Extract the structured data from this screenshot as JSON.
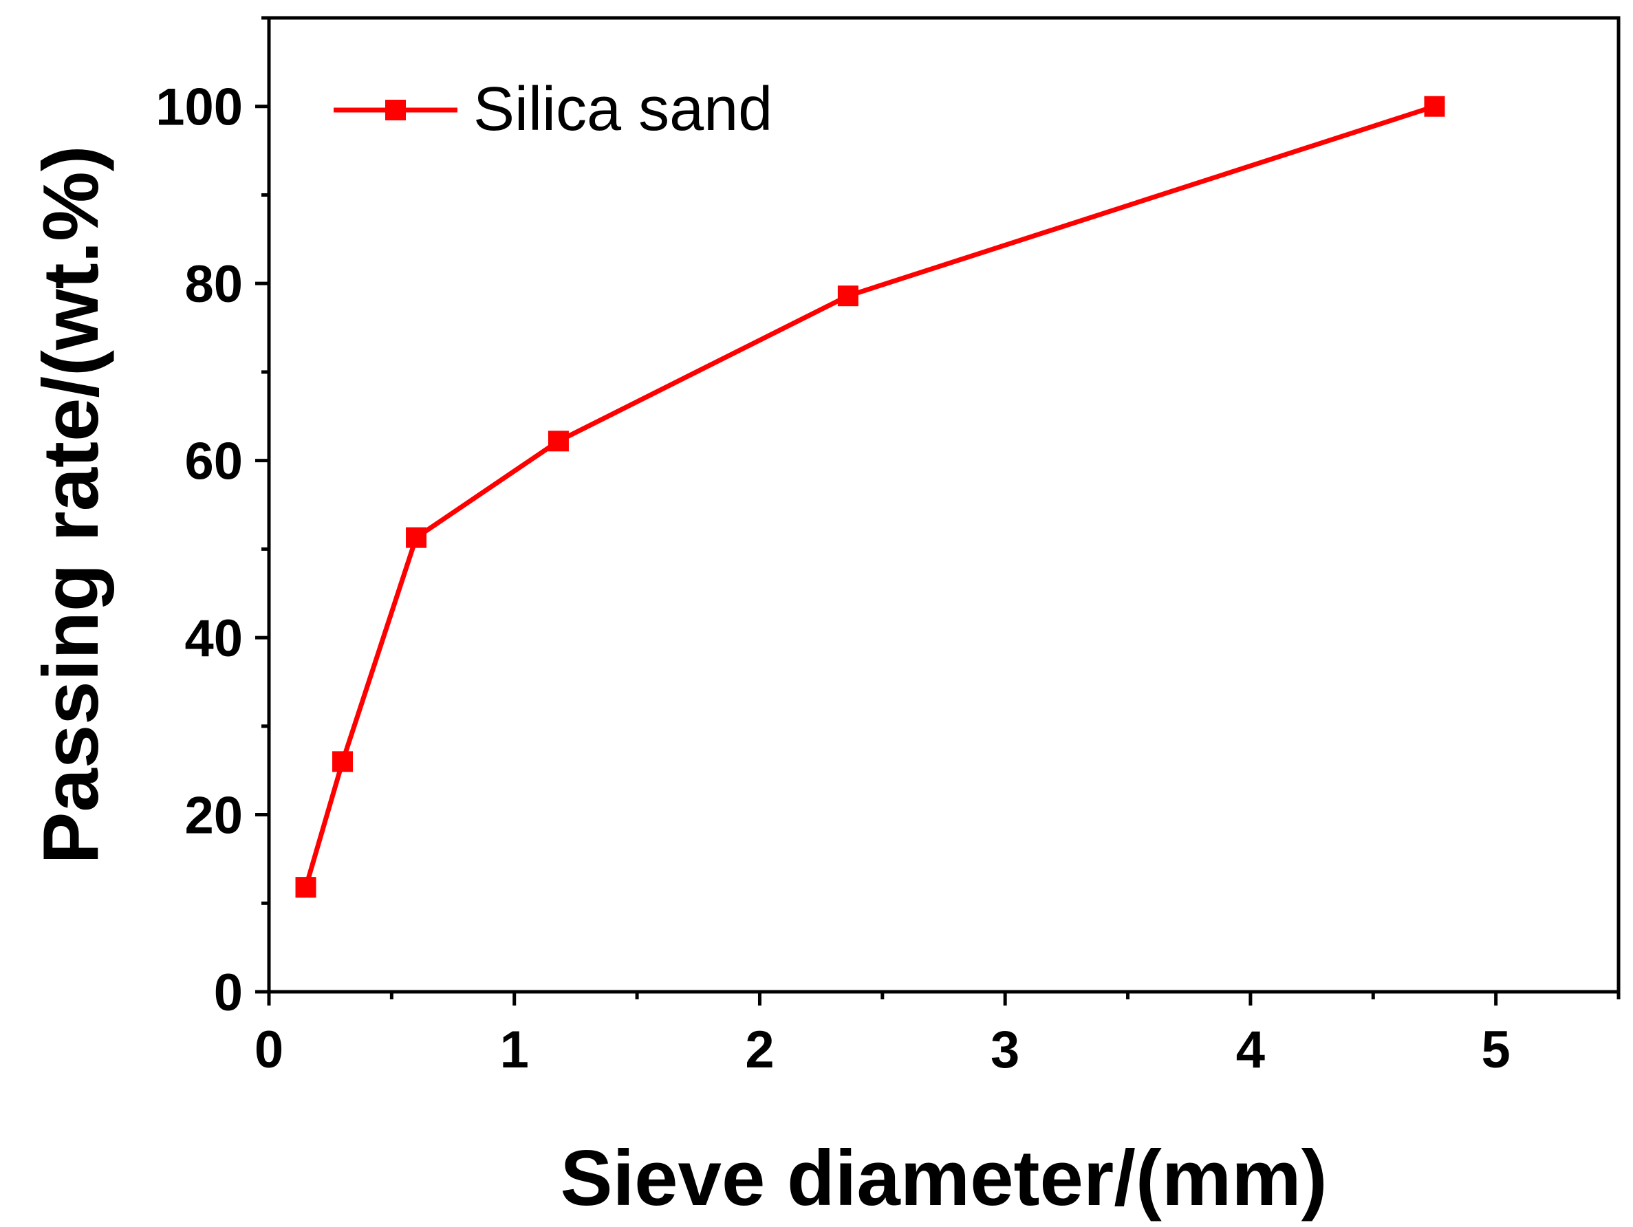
{
  "chart_data": {
    "type": "line",
    "title": "",
    "xlabel": "Sieve diameter/(mm)",
    "ylabel": "Passing rate/(wt.%)",
    "xlim": [
      0,
      5.5
    ],
    "ylim": [
      0,
      110
    ],
    "x_ticks": [
      0,
      1,
      2,
      3,
      4,
      5
    ],
    "y_ticks": [
      0,
      20,
      40,
      60,
      80,
      100
    ],
    "x_minor_ticks": [
      0.5,
      1.5,
      2.5,
      3.5,
      4.5,
      5.5
    ],
    "y_minor_ticks": [
      10,
      30,
      50,
      70,
      90,
      110
    ],
    "grid": false,
    "legend_position": "top-left",
    "series": [
      {
        "name": "Silica sand",
        "color": "#ff0000",
        "marker": "square",
        "x": [
          0.15,
          0.3,
          0.6,
          1.18,
          2.36,
          4.75
        ],
        "y": [
          11.8,
          26,
          51.3,
          62.2,
          78.6,
          100
        ]
      }
    ]
  }
}
